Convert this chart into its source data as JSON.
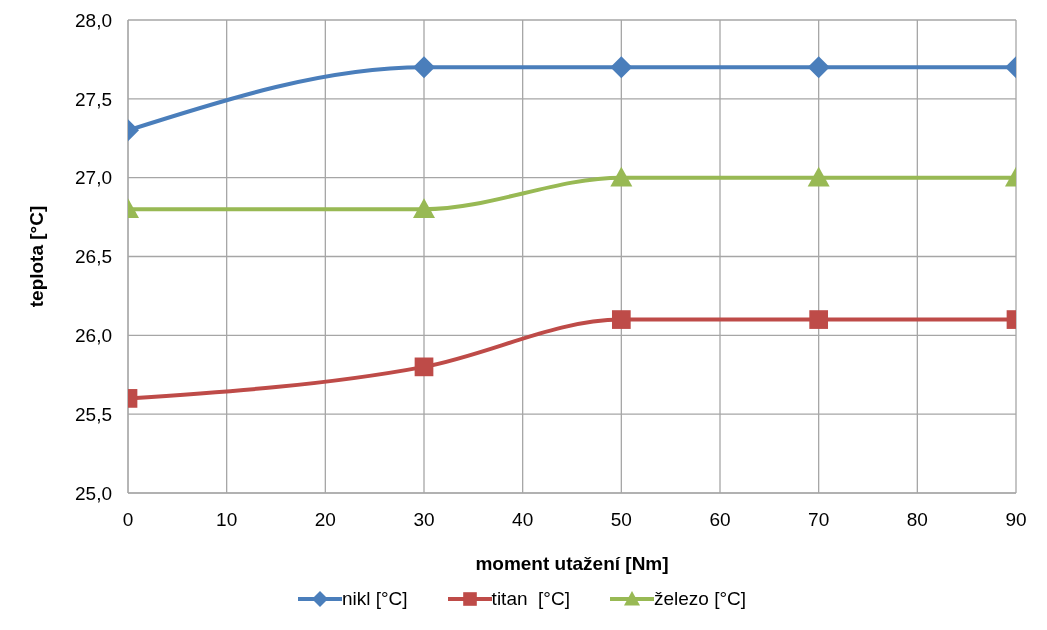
{
  "chart_data": {
    "type": "line",
    "xlabel": "moment utažení [Nm]",
    "ylabel": "teplota [°C]",
    "x": [
      0,
      30,
      50,
      70,
      90
    ],
    "series": [
      {
        "name": "nikl [°C]",
        "color": "#4a7ebb",
        "marker": "diamond",
        "values": [
          27.3,
          27.7,
          27.7,
          27.7,
          27.7
        ]
      },
      {
        "name": "titan  [°C]",
        "color": "#be4b48",
        "marker": "square",
        "values": [
          25.6,
          25.8,
          26.1,
          26.1,
          26.1
        ]
      },
      {
        "name": "železo [°C]",
        "color": "#98b954",
        "marker": "triangle",
        "values": [
          26.8,
          26.8,
          27.0,
          27.0,
          27.0
        ]
      }
    ],
    "xlim": [
      0,
      90
    ],
    "xticks": [
      0,
      10,
      20,
      30,
      40,
      50,
      60,
      70,
      80,
      90
    ],
    "ylim": [
      25,
      28
    ],
    "yticks": [
      {
        "value": 25,
        "label": "25,0"
      },
      {
        "value": 25.5,
        "label": "25,5"
      },
      {
        "value": 26,
        "label": "26,0"
      },
      {
        "value": 26.5,
        "label": "26,5"
      },
      {
        "value": 27,
        "label": "27,0"
      },
      {
        "value": 27.5,
        "label": "27,5"
      },
      {
        "value": 28,
        "label": "28,0"
      }
    ],
    "grid": true,
    "legend": "bottom",
    "line_style": "solid"
  }
}
